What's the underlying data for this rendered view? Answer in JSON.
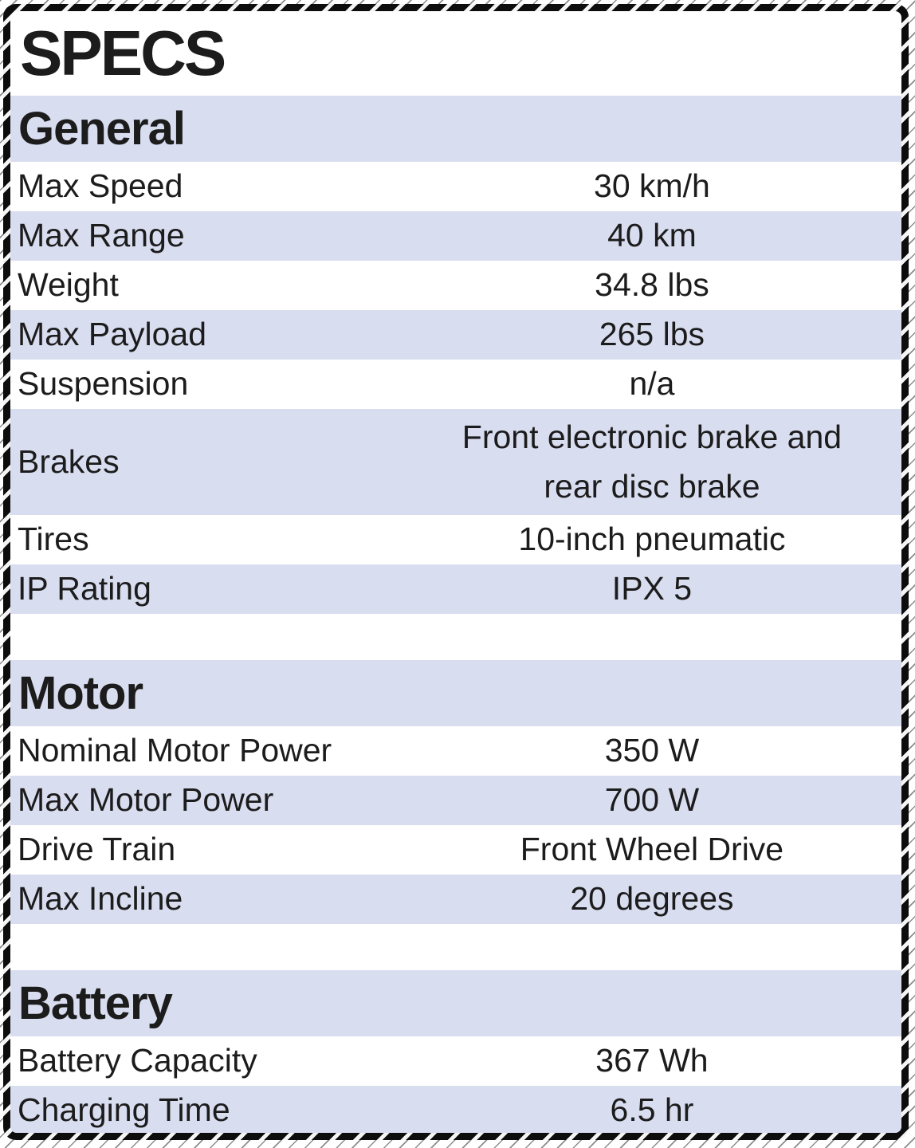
{
  "title": "SPECS",
  "colors": {
    "band": "#d9ddf0",
    "card_bg": "#ffffff",
    "text": "#1c1c1c",
    "border": "#0d0d0d"
  },
  "sections": [
    {
      "name": "General",
      "rows": [
        {
          "label": "Max Speed",
          "value": "30 km/h"
        },
        {
          "label": "Max Range",
          "value": "40 km"
        },
        {
          "label": "Weight",
          "value": "34.8 lbs"
        },
        {
          "label": "Max Payload",
          "value": "265 lbs"
        },
        {
          "label": "Suspension",
          "value": "n/a"
        },
        {
          "label": "Brakes",
          "value": "Front electronic brake and\nrear disc brake",
          "tall": true
        },
        {
          "label": "Tires",
          "value": "10-inch pneumatic"
        },
        {
          "label": "IP Rating",
          "value": "IPX 5"
        }
      ]
    },
    {
      "name": "Motor",
      "rows": [
        {
          "label": "Nominal Motor Power",
          "value": "350 W"
        },
        {
          "label": "Max Motor Power",
          "value": "700 W"
        },
        {
          "label": "Drive Train",
          "value": "Front Wheel Drive"
        },
        {
          "label": "Max Incline",
          "value": "20 degrees"
        }
      ]
    },
    {
      "name": "Battery",
      "rows": [
        {
          "label": "Battery Capacity",
          "value": "367 Wh"
        },
        {
          "label": "Charging Time",
          "value": "6.5 hr"
        }
      ]
    }
  ]
}
